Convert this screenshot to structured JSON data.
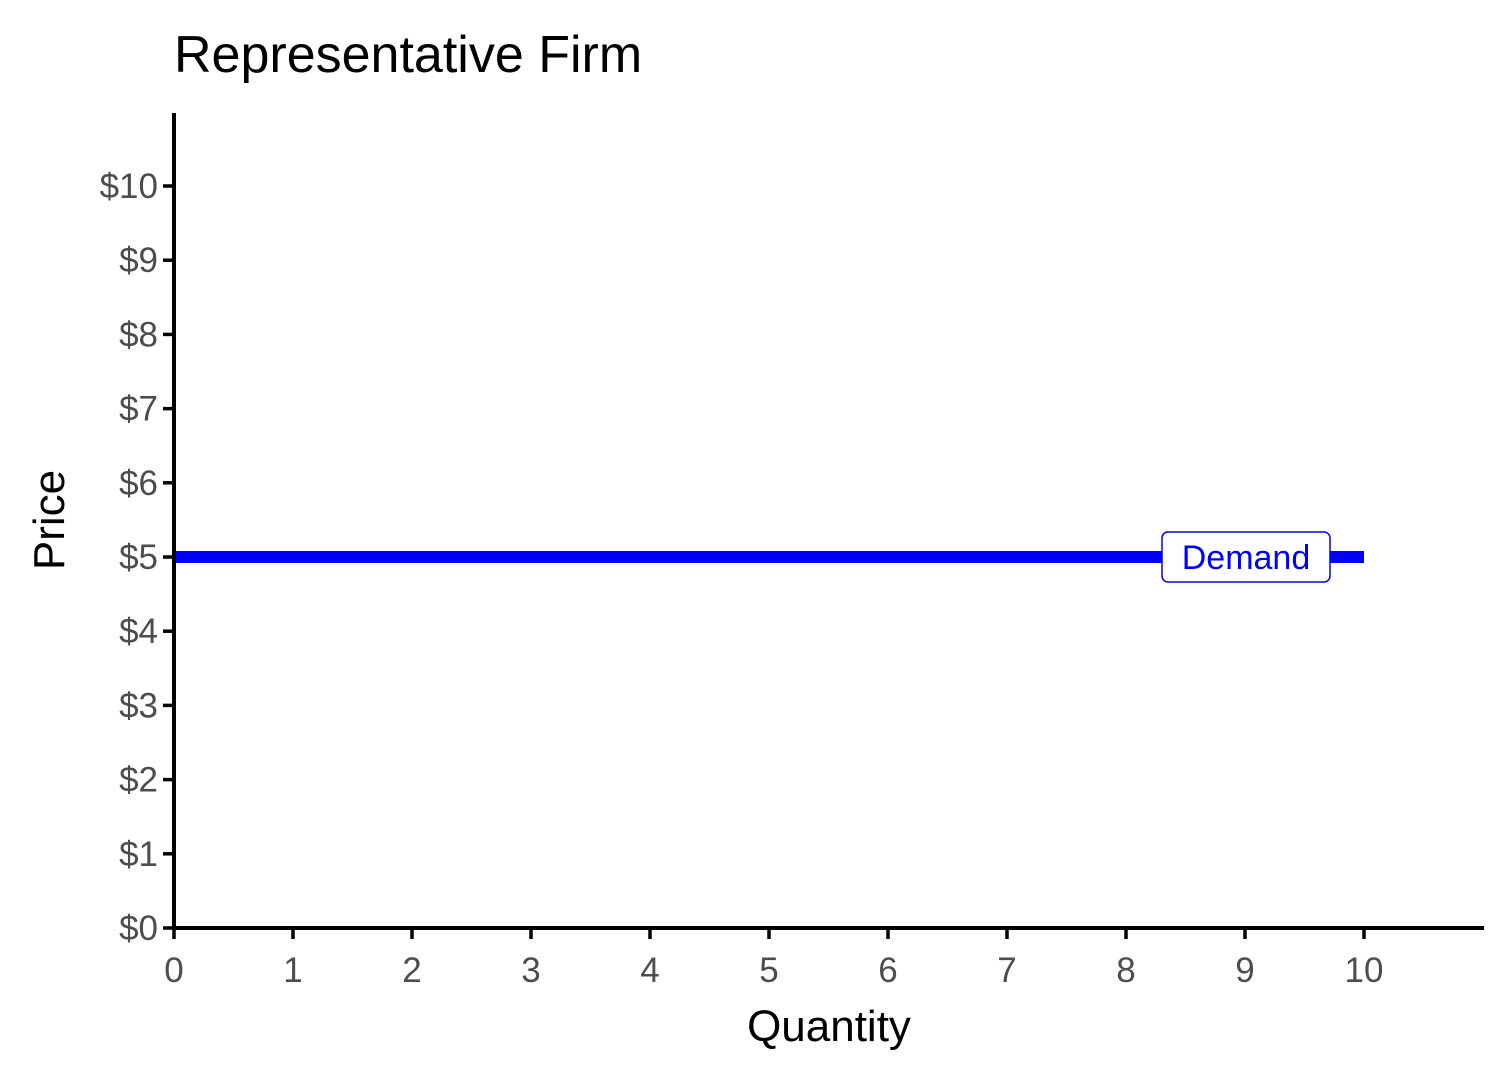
{
  "chart_data": {
    "type": "line",
    "title": "Representative Firm",
    "xlabel": "Quantity",
    "ylabel": "Price",
    "xlim": [
      0,
      11
    ],
    "ylim": [
      0,
      11
    ],
    "x_ticks": [
      0,
      1,
      2,
      3,
      4,
      5,
      6,
      7,
      8,
      9,
      10
    ],
    "x_tick_labels": [
      "0",
      "1",
      "2",
      "3",
      "4",
      "5",
      "6",
      "7",
      "8",
      "9",
      "10"
    ],
    "y_ticks": [
      0,
      1,
      2,
      3,
      4,
      5,
      6,
      7,
      8,
      9,
      10
    ],
    "y_tick_labels": [
      "$0",
      "$1",
      "$2",
      "$3",
      "$4",
      "$5",
      "$6",
      "$7",
      "$8",
      "$9",
      "$10"
    ],
    "grid": false,
    "series": [
      {
        "name": "Demand",
        "color": "#0000ff",
        "x": [
          0,
          10
        ],
        "y": [
          5,
          5
        ]
      }
    ],
    "annotations": [
      {
        "text": "Demand",
        "x": 9,
        "y": 5,
        "color": "#0000ff"
      }
    ]
  }
}
